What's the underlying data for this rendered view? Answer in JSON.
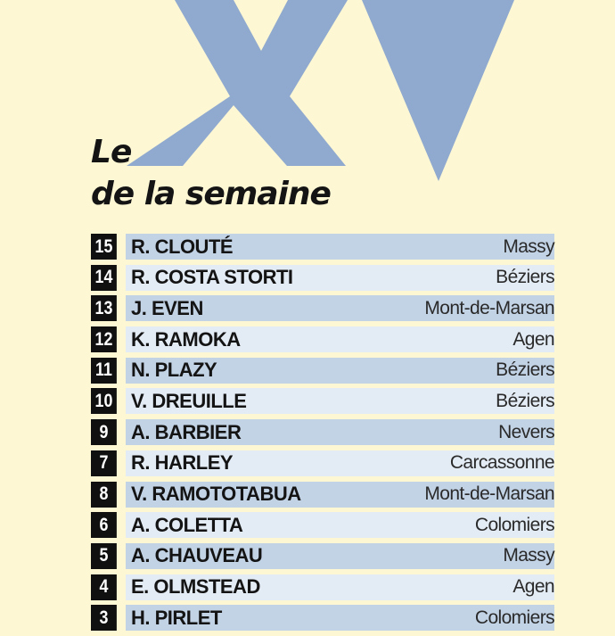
{
  "colors": {
    "background": "#fdf7d3",
    "logo": "#8fa9cf",
    "band_dark": "#c3d3e6",
    "band_light": "#e3ebf4",
    "number_box": "#101010"
  },
  "logo": {
    "text": "XV"
  },
  "title": {
    "line1": "Le",
    "line2": "de la semaine"
  },
  "players": [
    {
      "number": "15",
      "name": "R. CLOUTÉ",
      "club": "Massy"
    },
    {
      "number": "14",
      "name": "R. COSTA STORTI",
      "club": "Béziers"
    },
    {
      "number": "13",
      "name": "J. EVEN",
      "club": "Mont-de-Marsan"
    },
    {
      "number": "12",
      "name": "K. RAMOKA",
      "club": "Agen"
    },
    {
      "number": "11",
      "name": "N. PLAZY",
      "club": "Béziers"
    },
    {
      "number": "10",
      "name": "V. DREUILLE",
      "club": "Béziers"
    },
    {
      "number": "9",
      "name": "A. BARBIER",
      "club": "Nevers"
    },
    {
      "number": "7",
      "name": "R. HARLEY",
      "club": "Carcassonne"
    },
    {
      "number": "8",
      "name": "V. RAMOTOTABUA",
      "club": "Mont-de-Marsan"
    },
    {
      "number": "6",
      "name": "A. COLETTA",
      "club": "Colomiers"
    },
    {
      "number": "5",
      "name": "A. CHAUVEAU",
      "club": "Massy"
    },
    {
      "number": "4",
      "name": "E. OLMSTEAD",
      "club": "Agen"
    },
    {
      "number": "3",
      "name": "H. PIRLET",
      "club": "Colomiers"
    }
  ]
}
